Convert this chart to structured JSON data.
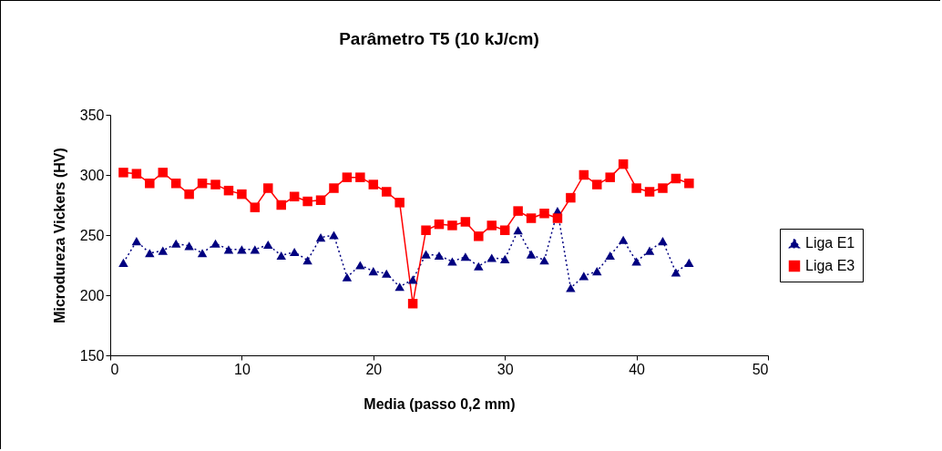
{
  "chart_data": {
    "type": "line",
    "title": "Parâmetro T5 (10 kJ/cm)",
    "xlabel": "Media (passo 0,2 mm)",
    "ylabel": "Microdureza Vickers (HV)",
    "x": [
      1,
      2,
      3,
      4,
      5,
      6,
      7,
      8,
      9,
      10,
      11,
      12,
      13,
      14,
      15,
      16,
      17,
      18,
      19,
      20,
      21,
      22,
      23,
      24,
      25,
      26,
      27,
      28,
      29,
      30,
      31,
      32,
      33,
      34,
      35,
      36,
      37,
      38,
      39,
      40,
      41,
      42,
      43,
      44
    ],
    "series": [
      {
        "name": "Liga E1",
        "color": "#000080",
        "marker": "triangle",
        "line_style": "dotted",
        "values": [
          227,
          245,
          235,
          237,
          243,
          241,
          235,
          243,
          238,
          238,
          238,
          242,
          233,
          236,
          229,
          248,
          250,
          215,
          225,
          220,
          218,
          207,
          213,
          234,
          233,
          228,
          232,
          224,
          231,
          230,
          254,
          234,
          229,
          270,
          206,
          216,
          220,
          233,
          246,
          228,
          237,
          245,
          219,
          227
        ]
      },
      {
        "name": "Liga E3",
        "color": "#ff0000",
        "marker": "square",
        "line_style": "solid",
        "values": [
          302,
          301,
          293,
          302,
          293,
          284,
          293,
          292,
          287,
          284,
          273,
          289,
          275,
          282,
          278,
          279,
          289,
          298,
          298,
          292,
          286,
          277,
          193,
          254,
          259,
          258,
          261,
          249,
          258,
          254,
          270,
          264,
          268,
          264,
          281,
          300,
          292,
          298,
          309,
          289,
          286,
          289,
          297,
          293
        ]
      }
    ],
    "xlim": [
      0,
      50
    ],
    "xticks": [
      0,
      10,
      20,
      30,
      40,
      50
    ],
    "ylim": [
      150,
      350
    ],
    "yticks": [
      150,
      200,
      250,
      300,
      350
    ],
    "grid": false,
    "legend": "right"
  }
}
